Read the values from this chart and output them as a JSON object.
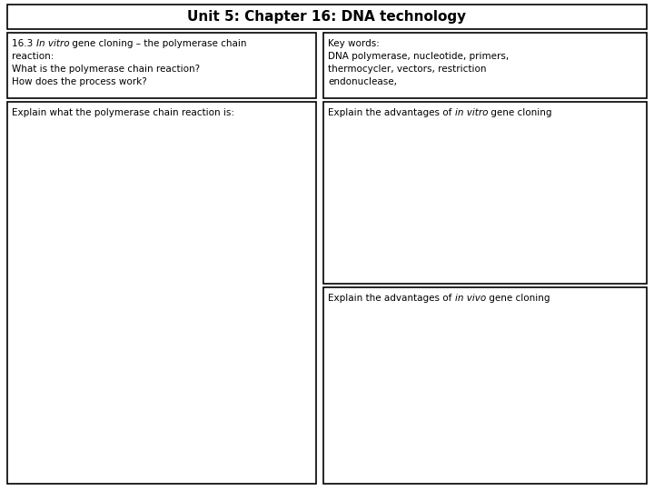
{
  "title": "Unit 5: Chapter 16: DNA technology",
  "title_fontsize": 11,
  "bg_color": "#ffffff",
  "border_color": "#000000",
  "top_right_lines": [
    "Key words:",
    "DNA polymerase, nucleotide, primers,",
    "thermocycler, vectors, restriction",
    "endonuclease,"
  ],
  "font_size_body": 7.5,
  "lw": 1.2
}
